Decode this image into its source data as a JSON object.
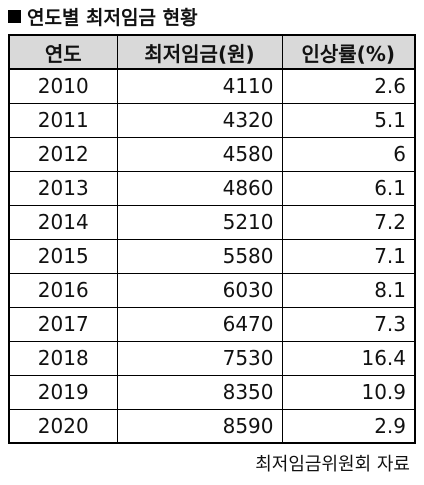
{
  "title": "연도별 최저임금 현황",
  "table": {
    "headers": [
      "연도",
      "최저임금(원)",
      "인상률(%)"
    ],
    "rows": [
      [
        "2010",
        "4110",
        "2.6"
      ],
      [
        "2011",
        "4320",
        "5.1"
      ],
      [
        "2012",
        "4580",
        "6"
      ],
      [
        "2013",
        "4860",
        "6.1"
      ],
      [
        "2014",
        "5210",
        "7.2"
      ],
      [
        "2015",
        "5580",
        "7.1"
      ],
      [
        "2016",
        "6030",
        "8.1"
      ],
      [
        "2017",
        "6470",
        "7.3"
      ],
      [
        "2018",
        "7530",
        "16.4"
      ],
      [
        "2019",
        "8350",
        "10.9"
      ],
      [
        "2020",
        "8590",
        "2.9"
      ]
    ]
  },
  "source": "최저임금위원회 자료",
  "colors": {
    "header_background": "#d9d9d9",
    "border": "#000000"
  }
}
